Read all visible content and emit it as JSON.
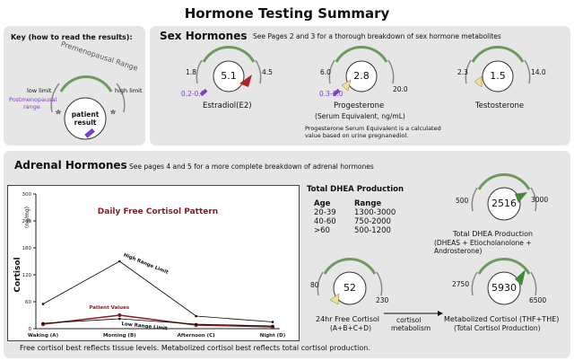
{
  "title": "Hormone Testing Summary",
  "key": {
    "heading": "Key (how to read the results):",
    "arc_label": "Premenopausal Range",
    "low_limit": "low limit",
    "high_limit": "high limit",
    "center": [
      "patient",
      "result"
    ],
    "postmeno": [
      "Postmenopausal",
      "range"
    ]
  },
  "sex": {
    "heading": "Sex Hormones",
    "note": "See Pages 2 and 3 for a thorough breakdown of sex hormone metabolites",
    "gauges": [
      {
        "id": "estradiol",
        "value": "5.1",
        "low": "1.8",
        "high": "4.5",
        "post": "0.2-0.7",
        "name": "Estradiol(E2)",
        "sub": "",
        "color": "#b0221f"
      },
      {
        "id": "progesterone",
        "value": "2.8",
        "low": "6.0",
        "high": "20.0",
        "post": "0.3-2.0",
        "name": "Progesterone",
        "sub": "(Serum Equivalent, ng/mL)",
        "color": "#f0e08a"
      },
      {
        "id": "testosterone",
        "value": "1.5",
        "low": "2.3",
        "high": "14.0",
        "post": "",
        "name": "Testosterone",
        "sub": "",
        "color": "#f0e08a"
      }
    ],
    "footnote": [
      "Progesterone Serum Equivalent is a calculated",
      "value based on urine pregnanediol."
    ]
  },
  "adrenal": {
    "heading": "Adrenal Hormones",
    "note": "See pages 4 and 5 for a more complete breakdown of adrenal hormones",
    "dhea_table": {
      "title": "Total DHEA Production",
      "headers": [
        "Age",
        "Range"
      ],
      "rows": [
        [
          "20-39",
          "1300-3000"
        ],
        [
          "40-60",
          "750-2000"
        ],
        [
          ">60",
          "500-1200"
        ]
      ]
    },
    "gauges": [
      {
        "id": "dhea",
        "value": "2516",
        "low": "500",
        "high": "3000",
        "name": "Total DHEA Production",
        "sub": "(DHEAS + Etiocholanolone + Androsterone)",
        "color": "#3f8a3a"
      },
      {
        "id": "free_cortisol",
        "value": "52",
        "low": "80",
        "high": "230",
        "name": "24hr Free Cortisol",
        "sub": "(A+B+C+D)",
        "color": "#f0e08a"
      },
      {
        "id": "metab_cortisol",
        "value": "5930",
        "low": "2750",
        "high": "6500",
        "name": "Metabolized Cortisol (THF+THE)",
        "sub": "(Total Cortisol Production)",
        "color": "#3f8a3a"
      }
    ],
    "arrow_label": [
      "cortisol",
      "metabolism"
    ],
    "footer": "Free cortisol best reflects tissue levels. Metabolized cortisol best reflects total cortisol production."
  },
  "chart_data": {
    "type": "line",
    "title": "Daily Free Cortisol Pattern",
    "ylabel": "Cortisol",
    "yunit": "(ng/mg)",
    "categories": [
      "Waking (A)",
      "Morning (B)",
      "Afternoon (C)",
      "Night (D)"
    ],
    "ylim": [
      0,
      300
    ],
    "yticks": [
      0,
      60,
      120,
      180,
      240,
      300
    ],
    "series": [
      {
        "name": "High Range Limit",
        "values": [
          55,
          150,
          28,
          15
        ],
        "color": "#000000"
      },
      {
        "name": "Patient Values",
        "values": [
          10,
          30,
          8,
          4
        ],
        "color": "#8b1a1a"
      },
      {
        "name": "Low Range Limit",
        "values": [
          12,
          22,
          10,
          6
        ],
        "color": "#000000"
      }
    ]
  }
}
